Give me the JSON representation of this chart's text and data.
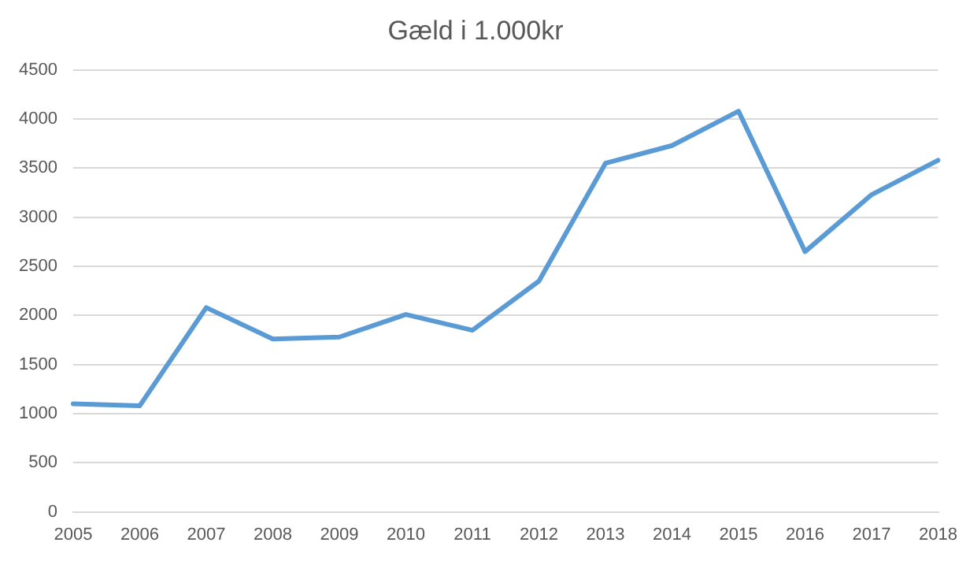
{
  "chart_data": {
    "type": "line",
    "title": "Gæld i 1.000kr",
    "categories": [
      "2005",
      "2006",
      "2007",
      "2008",
      "2009",
      "2010",
      "2011",
      "2012",
      "2013",
      "2014",
      "2015",
      "2016",
      "2017",
      "2018"
    ],
    "series": [
      {
        "color": "#5b9bd5",
        "values": [
          1100,
          1080,
          2080,
          1760,
          1780,
          2010,
          1850,
          2350,
          3550,
          3730,
          4080,
          2650,
          3230,
          3580
        ]
      }
    ],
    "ylim": [
      0,
      4500
    ],
    "yticks": [
      0,
      500,
      1000,
      1500,
      2000,
      2500,
      3000,
      3500,
      4000,
      4500
    ],
    "grid": "y",
    "legend": false,
    "marker": "none",
    "line_style": "solid"
  }
}
